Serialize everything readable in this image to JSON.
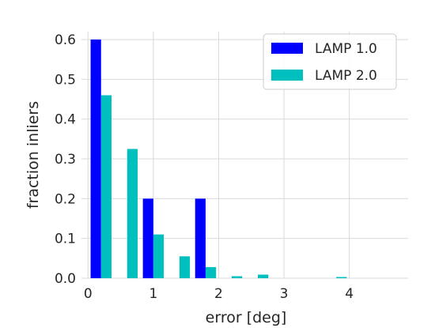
{
  "chart_data": {
    "type": "bar",
    "title": "",
    "xlabel": "error [deg]",
    "ylabel": "fraction inliers",
    "xlim": [
      -0.1,
      4.9
    ],
    "ylim": [
      0,
      0.62
    ],
    "xticks": [
      0,
      1,
      2,
      3,
      4
    ],
    "yticks": [
      "0.0",
      "0.1",
      "0.2",
      "0.3",
      "0.4",
      "0.5",
      "0.6"
    ],
    "grid": true,
    "legend_position": "top-right",
    "bin_width": 0.4,
    "x": [
      0.2,
      0.6,
      1.0,
      1.4,
      1.8,
      2.2,
      2.6,
      3.0,
      3.4,
      3.8,
      4.2,
      4.6
    ],
    "series": [
      {
        "name": "LAMP 1.0",
        "color": "#0000ff",
        "values": [
          0.6,
          0,
          0.2,
          0,
          0.2,
          0,
          0,
          0,
          0,
          0,
          0,
          0
        ]
      },
      {
        "name": "LAMP 2.0",
        "color": "#00bfbf",
        "values": [
          0.46,
          0.325,
          0.11,
          0.055,
          0.028,
          0.005,
          0.009,
          0,
          0,
          0.003,
          0,
          0
        ]
      }
    ]
  }
}
